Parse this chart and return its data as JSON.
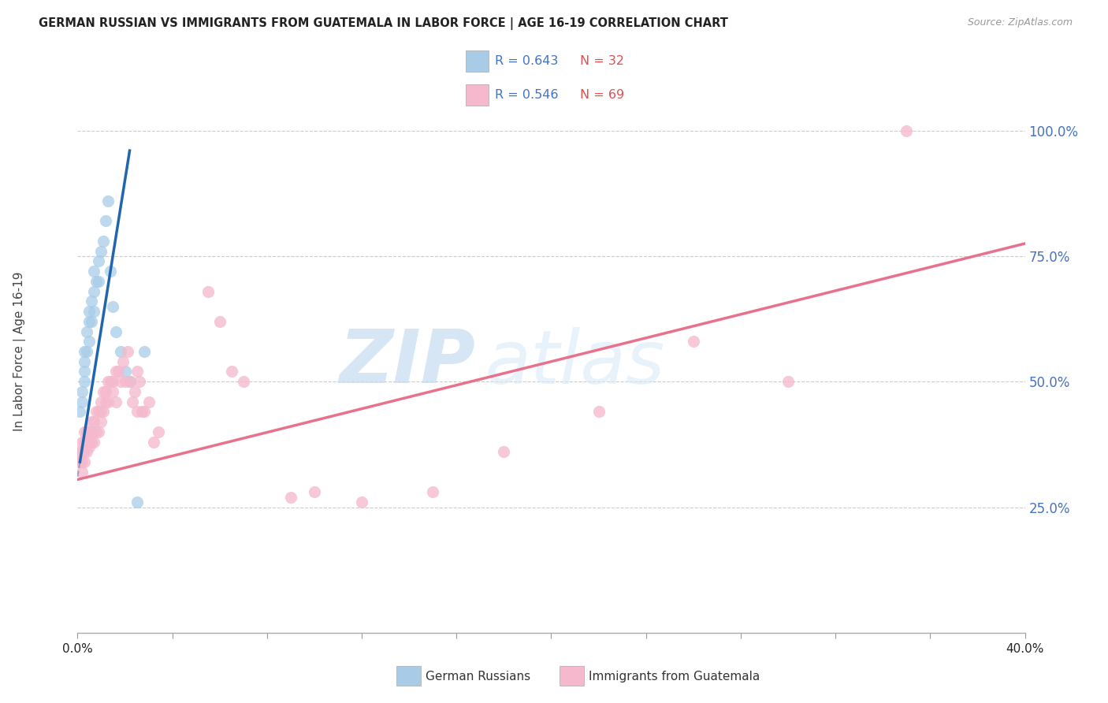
{
  "title": "GERMAN RUSSIAN VS IMMIGRANTS FROM GUATEMALA IN LABOR FORCE | AGE 16-19 CORRELATION CHART",
  "source": "Source: ZipAtlas.com",
  "ylabel": "In Labor Force | Age 16-19",
  "blue_R": 0.643,
  "blue_N": 32,
  "pink_R": 0.546,
  "pink_N": 69,
  "blue_color": "#a8cce8",
  "pink_color": "#f5b8cc",
  "blue_line_color": "#2166ac",
  "pink_line_color": "#e8718d",
  "blue_label": "German Russians",
  "pink_label": "Immigrants from Guatemala",
  "watermark_zip": "ZIP",
  "watermark_atlas": "atlas",
  "xmin": 0.0,
  "xmax": 0.4,
  "ymin": 0.0,
  "ymax": 1.12,
  "ytick_positions": [
    0.25,
    0.5,
    0.75,
    1.0
  ],
  "ytick_labels": [
    "25.0%",
    "50.0%",
    "75.0%",
    "100.0%"
  ],
  "blue_x": [
    0.001,
    0.002,
    0.002,
    0.003,
    0.003,
    0.003,
    0.003,
    0.004,
    0.004,
    0.005,
    0.005,
    0.005,
    0.006,
    0.006,
    0.007,
    0.007,
    0.007,
    0.008,
    0.009,
    0.009,
    0.01,
    0.011,
    0.012,
    0.013,
    0.014,
    0.015,
    0.016,
    0.018,
    0.02,
    0.022,
    0.025,
    0.028
  ],
  "blue_y": [
    0.44,
    0.46,
    0.48,
    0.5,
    0.52,
    0.54,
    0.56,
    0.56,
    0.6,
    0.58,
    0.62,
    0.64,
    0.62,
    0.66,
    0.64,
    0.68,
    0.72,
    0.7,
    0.7,
    0.74,
    0.76,
    0.78,
    0.82,
    0.86,
    0.72,
    0.65,
    0.6,
    0.56,
    0.52,
    0.5,
    0.26,
    0.56
  ],
  "pink_x": [
    0.001,
    0.001,
    0.001,
    0.002,
    0.002,
    0.002,
    0.002,
    0.003,
    0.003,
    0.003,
    0.003,
    0.004,
    0.004,
    0.004,
    0.005,
    0.005,
    0.005,
    0.006,
    0.006,
    0.006,
    0.007,
    0.007,
    0.008,
    0.008,
    0.009,
    0.009,
    0.01,
    0.01,
    0.01,
    0.011,
    0.011,
    0.012,
    0.012,
    0.013,
    0.013,
    0.014,
    0.015,
    0.015,
    0.016,
    0.016,
    0.017,
    0.018,
    0.019,
    0.02,
    0.021,
    0.022,
    0.023,
    0.024,
    0.025,
    0.025,
    0.026,
    0.027,
    0.028,
    0.03,
    0.032,
    0.034,
    0.055,
    0.06,
    0.065,
    0.07,
    0.09,
    0.1,
    0.12,
    0.15,
    0.18,
    0.22,
    0.26,
    0.3,
    0.35
  ],
  "pink_y": [
    0.34,
    0.36,
    0.35,
    0.32,
    0.36,
    0.38,
    0.34,
    0.36,
    0.38,
    0.4,
    0.34,
    0.36,
    0.38,
    0.4,
    0.37,
    0.38,
    0.4,
    0.38,
    0.4,
    0.42,
    0.38,
    0.42,
    0.4,
    0.44,
    0.4,
    0.44,
    0.42,
    0.46,
    0.44,
    0.44,
    0.48,
    0.46,
    0.48,
    0.46,
    0.5,
    0.5,
    0.48,
    0.5,
    0.46,
    0.52,
    0.52,
    0.5,
    0.54,
    0.5,
    0.56,
    0.5,
    0.46,
    0.48,
    0.44,
    0.52,
    0.5,
    0.44,
    0.44,
    0.46,
    0.38,
    0.4,
    0.68,
    0.62,
    0.52,
    0.5,
    0.27,
    0.28,
    0.26,
    0.28,
    0.36,
    0.44,
    0.58,
    0.5,
    1.0
  ],
  "blue_line_x0": 0.001,
  "blue_line_x1": 0.022,
  "blue_line_y0": 0.34,
  "blue_line_y1": 0.96,
  "pink_line_x0": 0.0,
  "pink_line_x1": 0.4,
  "pink_line_y0": 0.305,
  "pink_line_y1": 0.775
}
